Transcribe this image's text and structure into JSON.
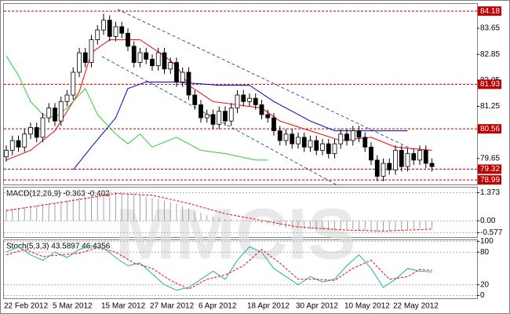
{
  "watermark": "MMCIS",
  "chart_data": [
    {
      "type": "candlestick",
      "categories": [
        "22 Feb 2012",
        null,
        null,
        null,
        null,
        null,
        null,
        null,
        "5 Mar 2012",
        null,
        null,
        null,
        null,
        null,
        null,
        null,
        "15 Mar 2012",
        null,
        null,
        null,
        null,
        null,
        null,
        null,
        "27 Mar 2012",
        null,
        null,
        null,
        null,
        null,
        null,
        null,
        "6 Apr 2012",
        null,
        null,
        null,
        null,
        null,
        null,
        null,
        "18 Apr 2012",
        null,
        null,
        null,
        null,
        null,
        null,
        null,
        "30 Apr 2012",
        null,
        null,
        null,
        null,
        null,
        null,
        null,
        "10 May 2012",
        null,
        null,
        null,
        null,
        null,
        null,
        null,
        "22 May 2012",
        null,
        null,
        null,
        null,
        null,
        null
      ],
      "open": [
        79.7,
        79.9,
        80.2,
        80.0,
        80.4,
        80.6,
        80.3,
        80.9,
        81.2,
        80.8,
        81.4,
        81.6,
        82.3,
        82.9,
        82.6,
        83.3,
        83.6,
        83.9,
        83.4,
        83.7,
        83.5,
        83.1,
        82.6,
        82.9,
        82.7,
        82.5,
        82.9,
        82.4,
        82.6,
        82.0,
        82.3,
        81.6,
        81.3,
        80.9,
        81.0,
        80.7,
        81.1,
        80.8,
        81.2,
        81.6,
        81.4,
        81.5,
        81.3,
        81.0,
        80.9,
        80.5,
        80.2,
        80.4,
        80.1,
        80.3,
        80.0,
        80.2,
        79.9,
        80.1,
        79.8,
        80.1,
        80.4,
        80.2,
        80.5,
        80.3,
        80.0,
        79.6,
        79.1,
        79.5,
        79.3,
        79.9,
        79.4,
        79.8,
        79.6,
        79.9,
        79.5
      ],
      "high": [
        80.05,
        80.35,
        80.35,
        80.55,
        80.75,
        80.75,
        81.05,
        81.35,
        81.35,
        81.55,
        81.75,
        82.45,
        83.05,
        83.05,
        83.45,
        83.75,
        84.1,
        84.05,
        83.85,
        83.85,
        83.65,
        83.25,
        83.05,
        83.05,
        82.85,
        83.05,
        83.05,
        82.75,
        82.75,
        82.45,
        82.45,
        81.75,
        81.45,
        81.15,
        81.15,
        81.25,
        81.25,
        81.35,
        81.75,
        81.75,
        81.65,
        81.65,
        81.45,
        81.15,
        81.05,
        80.65,
        80.55,
        80.55,
        80.45,
        80.45,
        80.35,
        80.35,
        80.25,
        80.25,
        80.25,
        80.55,
        80.55,
        80.65,
        80.65,
        80.45,
        80.15,
        79.75,
        79.65,
        79.65,
        80.05,
        80.05,
        79.95,
        79.95,
        80.05,
        80.05,
        79.65
      ],
      "low": [
        79.55,
        79.75,
        79.85,
        79.85,
        80.25,
        80.15,
        80.15,
        80.75,
        80.65,
        80.65,
        81.25,
        81.45,
        82.15,
        82.45,
        82.45,
        83.15,
        83.45,
        83.25,
        83.25,
        83.35,
        82.95,
        82.45,
        82.45,
        82.55,
        82.35,
        82.35,
        82.25,
        82.25,
        81.85,
        81.85,
        81.45,
        81.15,
        80.75,
        80.75,
        80.55,
        80.55,
        80.65,
        80.65,
        81.05,
        81.25,
        81.25,
        81.15,
        80.85,
        80.75,
        80.35,
        80.05,
        80.05,
        79.95,
        79.95,
        79.85,
        79.85,
        79.75,
        79.75,
        79.65,
        79.65,
        79.95,
        80.05,
        80.05,
        80.15,
        79.85,
        79.45,
        78.95,
        78.95,
        79.15,
        79.15,
        79.25,
        79.25,
        79.45,
        79.45,
        79.35,
        79.25
      ],
      "close": [
        79.9,
        80.2,
        80.0,
        80.4,
        80.6,
        80.3,
        80.9,
        81.2,
        80.8,
        81.4,
        81.6,
        82.3,
        82.9,
        82.6,
        83.3,
        83.6,
        83.9,
        83.4,
        83.7,
        83.5,
        83.1,
        82.6,
        82.9,
        82.7,
        82.5,
        82.9,
        82.4,
        82.6,
        82.0,
        82.3,
        81.6,
        81.3,
        80.9,
        81.0,
        80.7,
        81.1,
        80.8,
        81.2,
        81.6,
        81.4,
        81.5,
        81.3,
        81.0,
        80.9,
        80.5,
        80.2,
        80.4,
        80.1,
        80.3,
        80.0,
        80.2,
        79.9,
        80.1,
        79.8,
        80.1,
        80.4,
        80.2,
        80.5,
        80.3,
        80.0,
        79.6,
        79.1,
        79.5,
        79.3,
        79.9,
        79.4,
        79.8,
        79.6,
        79.9,
        79.5,
        79.4
      ],
      "up_color": "#ffffff",
      "down_color": "#000000",
      "ylim": [
        78.85,
        84.4
      ],
      "yticks": [
        83.65,
        82.85,
        82.05,
        81.25,
        79.65
      ],
      "levels": [
        84.18,
        81.93,
        80.56,
        79.32,
        78.99
      ],
      "level_color": "#c00000",
      "lines": [
        {
          "color": "#ff0000",
          "x": [
            0,
            4,
            8,
            12,
            14,
            17,
            22,
            26,
            28,
            30,
            34,
            38,
            42,
            45,
            50,
            55,
            60,
            64,
            70
          ],
          "values": [
            79.6,
            79.9,
            80.5,
            81.7,
            82.9,
            83.3,
            83.3,
            82.8,
            82.5,
            81.9,
            81.4,
            81.3,
            81.2,
            80.8,
            80.5,
            80.2,
            80.3,
            80.0,
            79.9
          ]
        },
        {
          "color": "#0000cc",
          "x": [
            11,
            14,
            18,
            20,
            23,
            28,
            35,
            40,
            44,
            50,
            54,
            60,
            66
          ],
          "values": [
            79.3,
            80.0,
            80.9,
            81.8,
            82.0,
            82.0,
            81.9,
            81.9,
            81.4,
            80.8,
            80.5,
            80.5,
            80.5
          ]
        },
        {
          "color": "#33cc33",
          "x": [
            0,
            2,
            4,
            6,
            8,
            10,
            13,
            15,
            18,
            20,
            22,
            24,
            28,
            32,
            36,
            41,
            43
          ],
          "values": [
            82.8,
            82.2,
            81.4,
            81.0,
            80.9,
            81.2,
            81.8,
            81.0,
            80.4,
            80.1,
            80.4,
            80.0,
            80.3,
            79.9,
            79.8,
            79.6,
            79.6
          ]
        }
      ]
    },
    {
      "type": "bar",
      "label": "MACD(12,26,9) -0.363 -0.402",
      "color": "#a0a0a0",
      "values": [
        0.55,
        0.6,
        0.62,
        0.68,
        0.72,
        0.75,
        0.8,
        0.85,
        0.88,
        0.95,
        1.0,
        1.08,
        1.15,
        1.2,
        1.27,
        1.32,
        1.37,
        1.38,
        1.4,
        1.38,
        1.35,
        1.3,
        1.25,
        1.18,
        1.1,
        1.05,
        0.98,
        0.9,
        0.82,
        0.72,
        0.6,
        0.48,
        0.38,
        0.28,
        0.2,
        0.15,
        0.1,
        0.08,
        0.05,
        0.02,
        -0.02,
        -0.06,
        -0.1,
        -0.16,
        -0.22,
        -0.28,
        -0.33,
        -0.36,
        -0.38,
        -0.4,
        -0.42,
        -0.43,
        -0.45,
        -0.46,
        -0.46,
        -0.44,
        -0.42,
        -0.42,
        -0.44,
        -0.46,
        -0.5,
        -0.52,
        -0.5,
        -0.5,
        -0.47,
        -0.45,
        -0.42,
        -0.4,
        -0.38,
        -0.37,
        -0.363
      ],
      "lines": [
        {
          "color": "#ff0000",
          "dashed": true,
          "x": [
            0,
            10,
            18,
            24,
            30,
            36,
            42,
            48,
            56,
            62,
            70
          ],
          "values": [
            0.5,
            0.95,
            1.33,
            1.25,
            0.85,
            0.35,
            0.02,
            -0.3,
            -0.45,
            -0.5,
            -0.402
          ]
        }
      ],
      "ylim": [
        -0.79,
        1.62
      ],
      "yticks": [
        1.373,
        {
          "value": 0,
          "label": "0.00"
        },
        -0.577
      ]
    },
    {
      "type": "line",
      "label": "Stoch(5,3,3) 43.5897 46.4356",
      "series": [
        {
          "color": "#20b2aa",
          "dashed": false,
          "x": [
            0,
            2,
            4,
            6,
            8,
            10,
            12,
            14,
            16,
            18,
            20,
            22,
            24,
            26,
            28,
            30,
            32,
            34,
            36,
            38,
            40,
            42,
            44,
            46,
            48,
            50,
            52,
            54,
            56,
            58,
            60,
            62,
            64,
            66,
            68,
            70
          ],
          "values": [
            80,
            90,
            75,
            65,
            80,
            70,
            85,
            92,
            88,
            70,
            55,
            60,
            40,
            20,
            10,
            15,
            30,
            45,
            30,
            65,
            90,
            80,
            50,
            35,
            20,
            35,
            25,
            30,
            55,
            75,
            50,
            15,
            30,
            50,
            45,
            43.5897
          ]
        },
        {
          "color": "#ff0000",
          "dashed": true,
          "x": [
            0,
            3,
            6,
            9,
            12,
            15,
            18,
            21,
            24,
            27,
            30,
            33,
            36,
            39,
            42,
            45,
            48,
            51,
            54,
            57,
            60,
            63,
            66,
            68,
            70
          ],
          "values": [
            75,
            85,
            72,
            75,
            78,
            88,
            80,
            60,
            50,
            28,
            12,
            30,
            38,
            55,
            85,
            60,
            30,
            30,
            28,
            50,
            65,
            30,
            35,
            48,
            46.4356
          ]
        }
      ],
      "ylim": [
        -5,
        102
      ],
      "yticks": [
        100,
        80,
        20,
        0
      ]
    }
  ]
}
